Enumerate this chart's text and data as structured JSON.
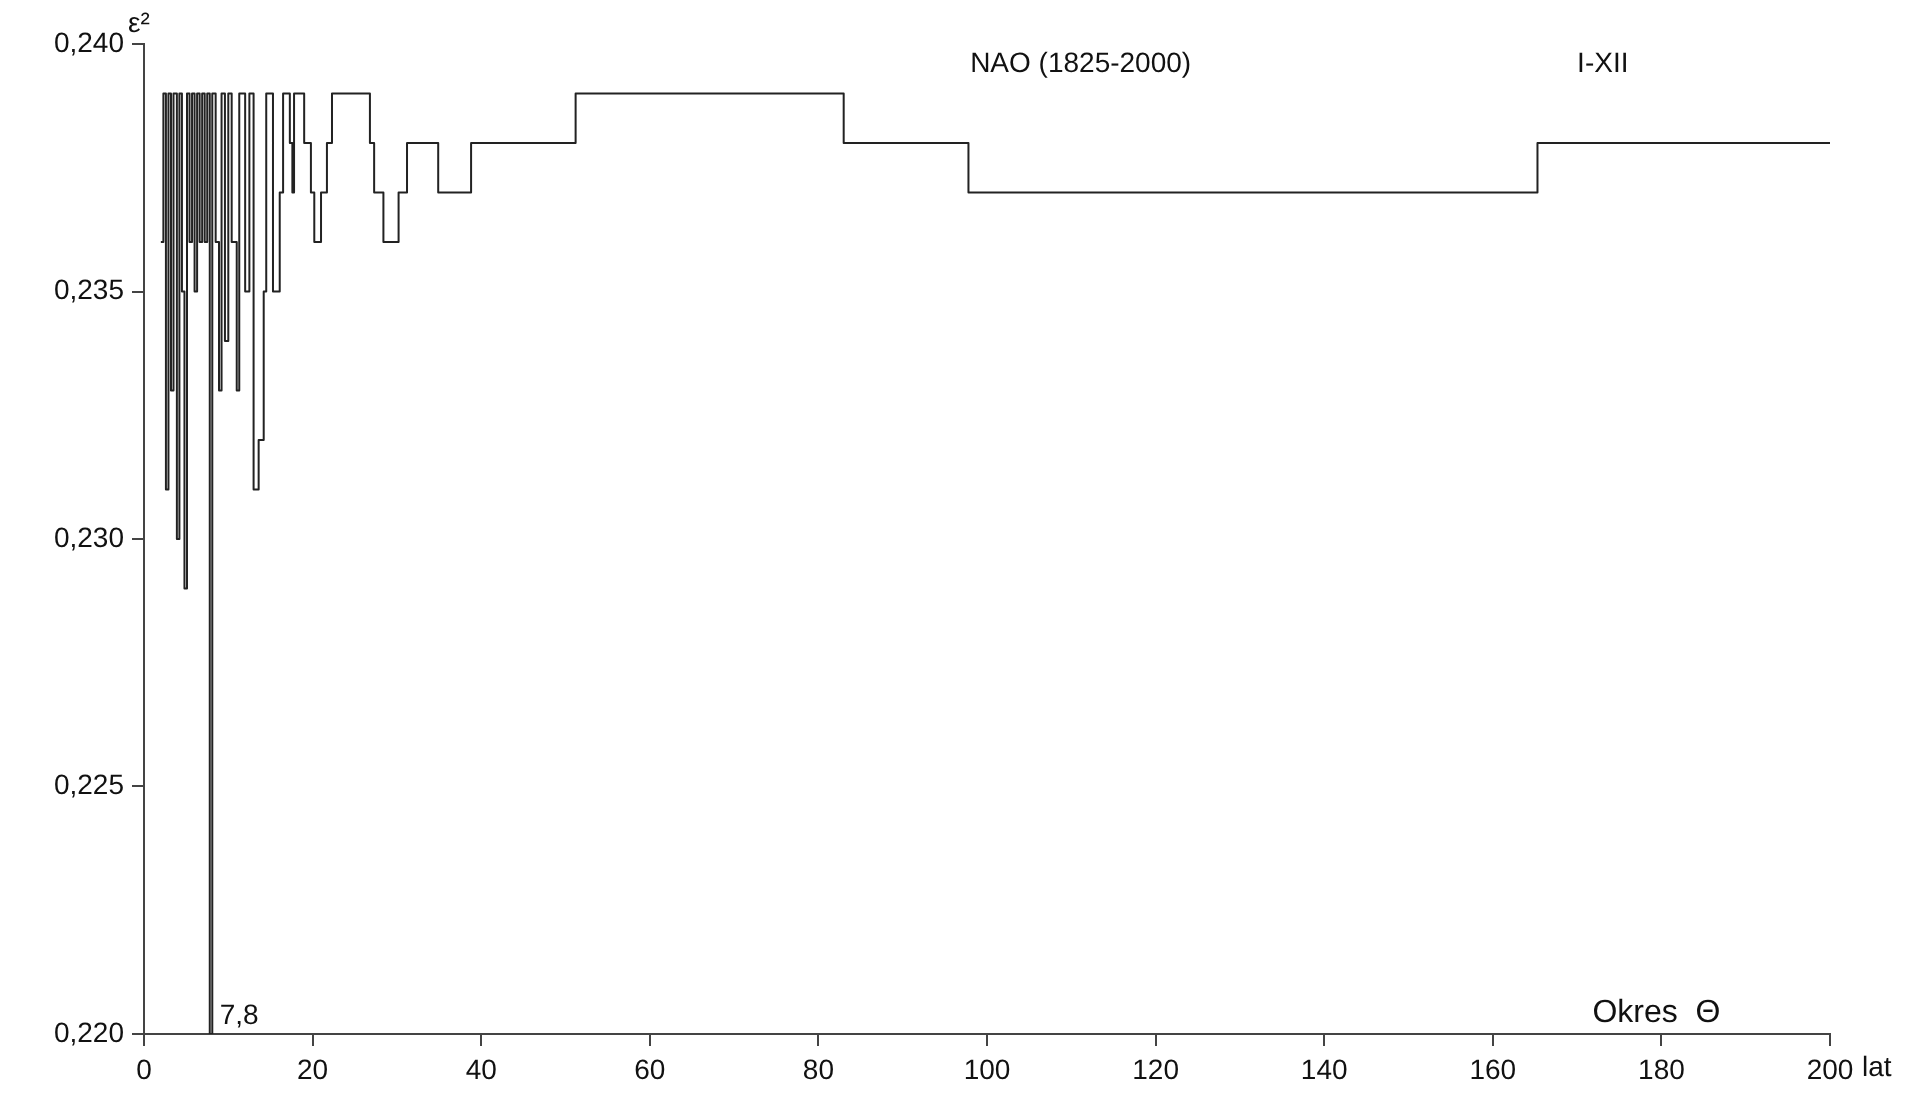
{
  "chart_data": {
    "type": "step",
    "title": "NAO (1825-2000)",
    "subtitle": "I-XII",
    "xlabel": "Okres  Θ",
    "ylabel": "ε²",
    "annotations": [
      "7,8",
      "lat"
    ],
    "x": [
      2.0,
      2.3,
      2.6,
      2.9,
      3.2,
      3.5,
      3.9,
      4.2,
      4.5,
      4.8,
      5.1,
      5.4,
      5.7,
      6.0,
      6.3,
      6.6,
      6.9,
      7.2,
      7.5,
      7.8,
      8.1,
      8.5,
      8.9,
      9.2,
      9.6,
      10.0,
      10.4,
      11.0,
      11.3,
      12.0,
      12.5,
      13.0,
      13.6,
      14.2,
      14.5,
      15.3,
      16.1,
      16.5,
      17.3,
      17.6,
      17.8,
      19.0,
      19.8,
      20.2,
      21.0,
      21.7,
      22.3,
      26.8,
      27.3,
      28.4,
      30.2,
      31.2,
      34.9,
      38.8,
      51.2,
      83.0,
      97.8,
      165.3,
      200.0
    ],
    "series": [
      {
        "color": "#222222",
        "values": [
          0.236,
          0.239,
          0.231,
          0.239,
          0.233,
          0.239,
          0.23,
          0.239,
          0.235,
          0.229,
          0.239,
          0.236,
          0.239,
          0.235,
          0.239,
          0.236,
          0.239,
          0.236,
          0.239,
          0.22,
          0.239,
          0.236,
          0.233,
          0.239,
          0.234,
          0.239,
          0.236,
          0.233,
          0.239,
          0.235,
          0.239,
          0.231,
          0.232,
          0.235,
          0.239,
          0.235,
          0.237,
          0.239,
          0.238,
          0.237,
          0.239,
          0.238,
          0.237,
          0.236,
          0.237,
          0.238,
          0.239,
          0.238,
          0.237,
          0.236,
          0.237,
          0.238,
          0.237,
          0.238,
          0.239,
          0.238,
          0.237,
          0.238,
          0.238
        ]
      }
    ],
    "xlim": [
      0,
      200
    ],
    "xticks": [
      0,
      20,
      40,
      60,
      80,
      100,
      120,
      140,
      160,
      180,
      200
    ],
    "ylim": [
      0.22,
      0.24
    ],
    "yticks": [
      {
        "value": 0.22,
        "label": "0,220"
      },
      {
        "value": 0.225,
        "label": "0,225"
      },
      {
        "value": 0.23,
        "label": "0,230"
      },
      {
        "value": 0.235,
        "label": "0,235"
      },
      {
        "value": 0.24,
        "label": "0,240"
      }
    ],
    "grid": false,
    "legend": false,
    "marker": "none",
    "line_style": "solid"
  }
}
